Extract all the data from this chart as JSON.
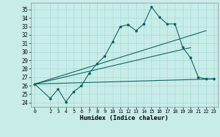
{
  "xlabel": "Humidex (Indice chaleur)",
  "background_color": "#c8ece8",
  "grid_color": "#a8d8d4",
  "line_color": "#006060",
  "xlim": [
    -0.5,
    23.5
  ],
  "ylim": [
    23.5,
    35.8
  ],
  "xticks": [
    0,
    2,
    3,
    4,
    5,
    6,
    7,
    8,
    9,
    10,
    11,
    12,
    13,
    14,
    15,
    16,
    17,
    18,
    19,
    20,
    21,
    22,
    23
  ],
  "yticks": [
    24,
    25,
    26,
    27,
    28,
    29,
    30,
    31,
    32,
    33,
    34,
    35
  ],
  "series1_x": [
    0,
    2,
    3,
    4,
    5,
    6,
    7,
    8,
    9,
    10,
    11,
    12,
    13,
    14,
    15,
    16,
    17,
    18,
    19,
    20,
    21,
    22,
    23
  ],
  "series1_y": [
    26.2,
    24.5,
    25.6,
    24.1,
    25.3,
    26.0,
    27.5,
    28.6,
    29.5,
    31.2,
    33.0,
    33.2,
    32.5,
    33.3,
    35.3,
    34.1,
    33.3,
    33.3,
    30.5,
    29.3,
    27.0,
    26.8,
    26.8
  ],
  "series2_x": [
    0,
    22
  ],
  "series2_y": [
    26.2,
    32.5
  ],
  "series3_x": [
    0,
    23
  ],
  "series3_y": [
    26.2,
    26.8
  ],
  "series4_x": [
    0,
    20
  ],
  "series4_y": [
    26.2,
    30.5
  ]
}
